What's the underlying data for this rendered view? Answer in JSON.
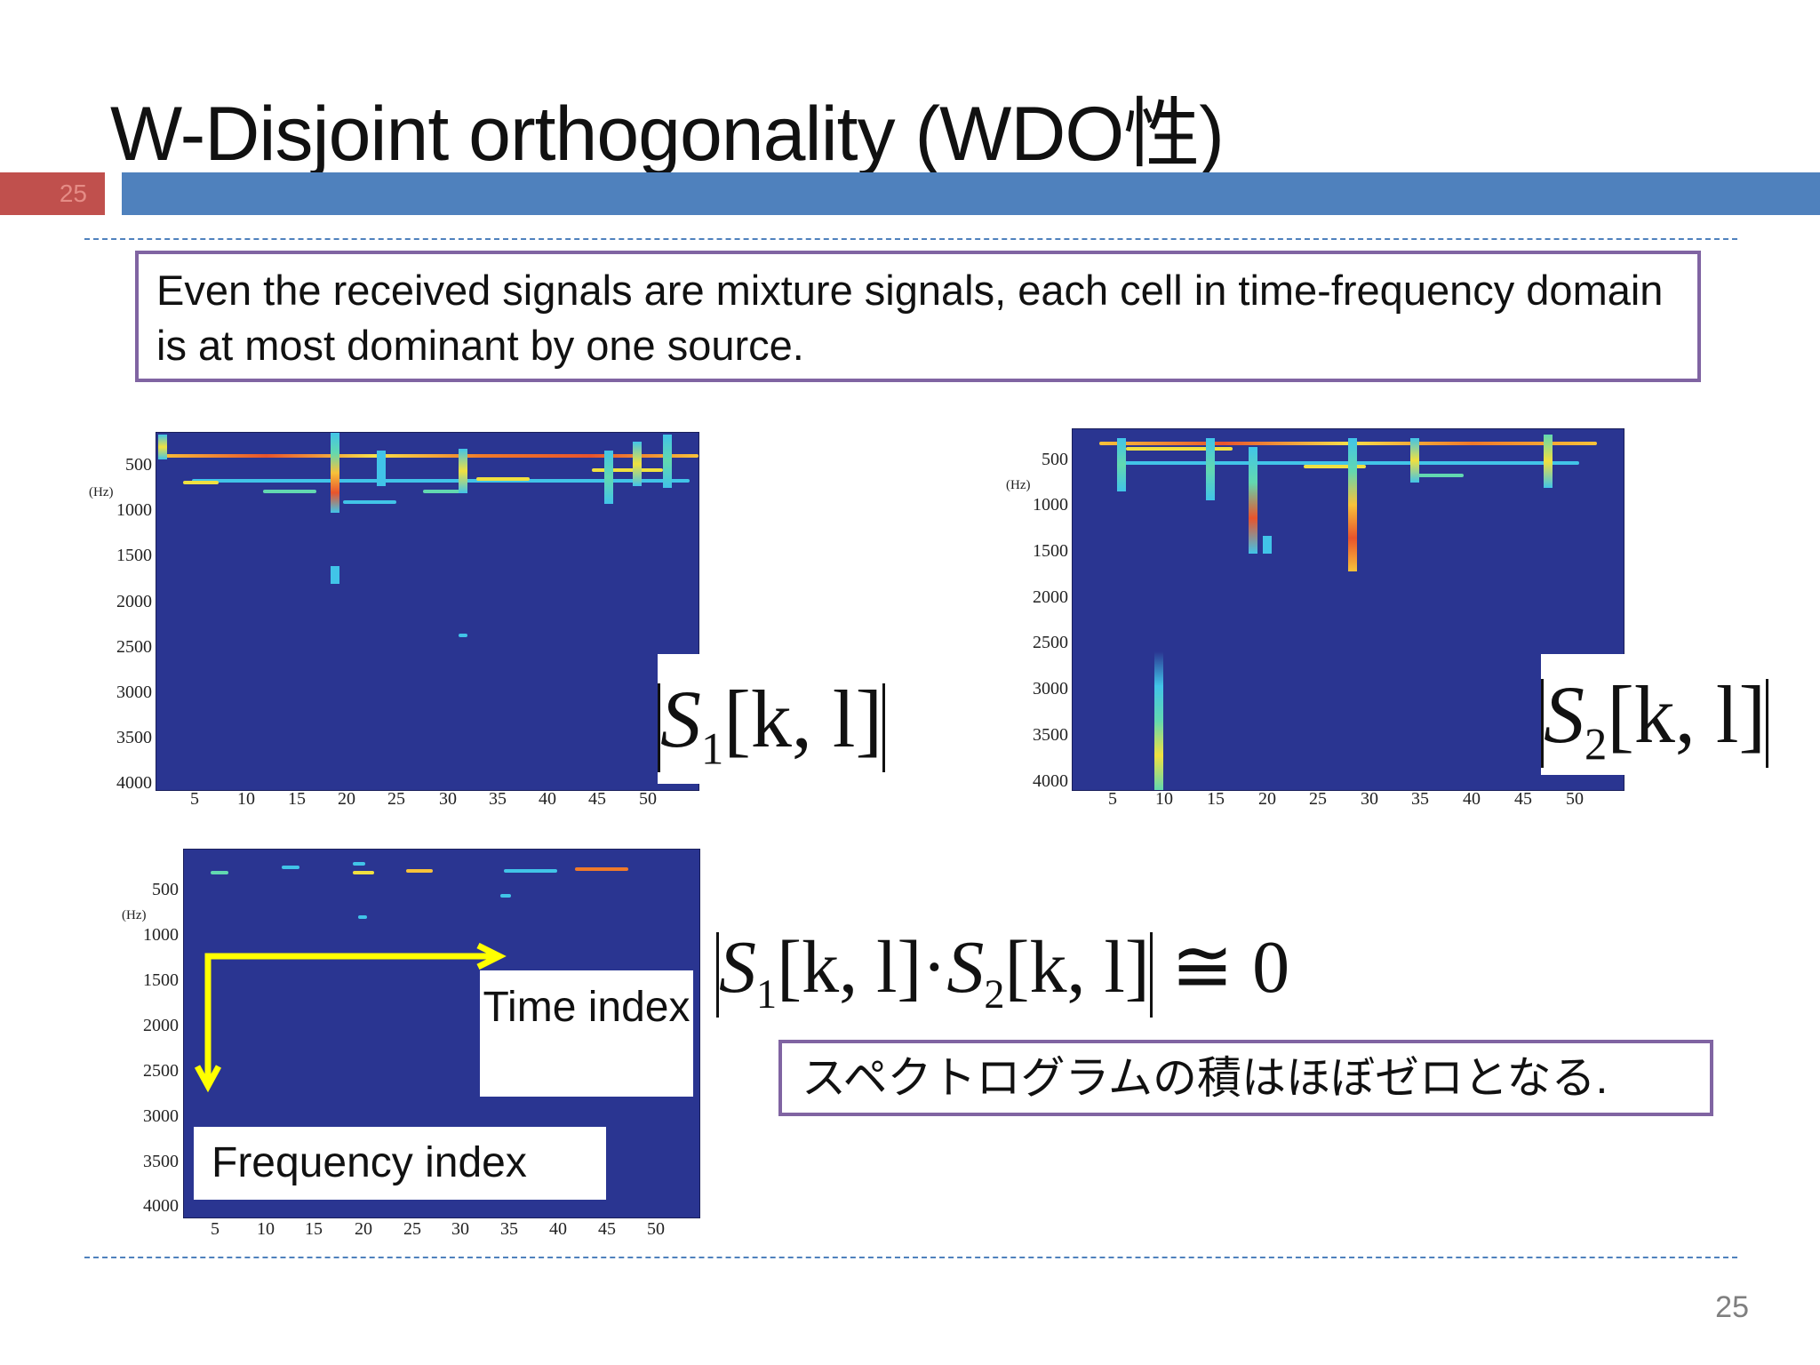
{
  "slide": {
    "title": "W-Disjoint orthogonality (WDO性)",
    "tab_number": "25",
    "page_number": "25"
  },
  "intro_box": {
    "text": "Even the received signals are mixture signals, each cell in time-frequency domain is at most dominant by one source."
  },
  "spectrogram_axes": {
    "y_ticks": [
      "500",
      "1000",
      "1500",
      "2000",
      "2500",
      "3000",
      "3500",
      "4000"
    ],
    "x_ticks": [
      "5",
      "10",
      "15",
      "20",
      "25",
      "30",
      "35",
      "40",
      "45",
      "50"
    ],
    "y_unit": "(Hz)"
  },
  "formulas": {
    "s1": {
      "symbol": "S",
      "sub": "1",
      "args": "[k, l]"
    },
    "s2": {
      "symbol": "S",
      "sub": "2",
      "args": "[k, l]"
    },
    "product": {
      "left": "S",
      "left_sub": "1",
      "args1": "[k, l]",
      "dot": "·",
      "right": "S",
      "right_sub": "2",
      "args2": "[k, l]",
      "relation": "≅ 0"
    }
  },
  "annotations": {
    "time_index": "Time index",
    "frequency_index": "Frequency index",
    "arrow_color": "#ffff00"
  },
  "japanese_note": {
    "text": "スペクトログラムの積はほぼゼロとなる."
  },
  "colors": {
    "title_bar": "#4f81bd",
    "slide_tab": "#c0504d",
    "box_border": "#8064a2",
    "spectrogram_bg": "#2a3591"
  }
}
